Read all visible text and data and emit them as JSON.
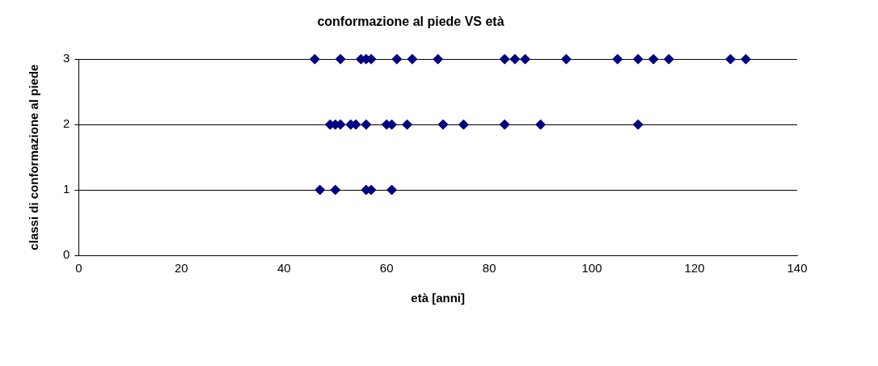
{
  "chart_data": {
    "type": "scatter",
    "title": "conformazione al piede VS età",
    "xlabel": "età [anni]",
    "ylabel": "classi di conformazione al piede",
    "series": [
      {
        "color": "#000080",
        "x": [
          46,
          51,
          55,
          56,
          57,
          62,
          65,
          70,
          83,
          85,
          87,
          95,
          105,
          109,
          112,
          115,
          127,
          130
        ],
        "values": [
          3,
          3,
          3,
          3,
          3,
          3,
          3,
          3,
          3,
          3,
          3,
          3,
          3,
          3,
          3,
          3,
          3,
          3
        ]
      },
      {
        "color": "#000080",
        "x": [
          49,
          50,
          51,
          53,
          54,
          56,
          60,
          61,
          64,
          71,
          75,
          83,
          90,
          109
        ],
        "values": [
          2,
          2,
          2,
          2,
          2,
          2,
          2,
          2,
          2,
          2,
          2,
          2,
          2,
          2
        ]
      },
      {
        "color": "#000080",
        "x": [
          47,
          50,
          56,
          57,
          61
        ],
        "values": [
          1,
          1,
          1,
          1,
          1
        ]
      }
    ],
    "xlim": [
      0,
      140
    ],
    "xticks": [
      0,
      20,
      40,
      60,
      80,
      100,
      120,
      140
    ],
    "ylim": [
      0,
      3
    ],
    "yticks": [
      0,
      1,
      2,
      3
    ],
    "grid": "y",
    "legend": false,
    "marker": "diamond"
  }
}
